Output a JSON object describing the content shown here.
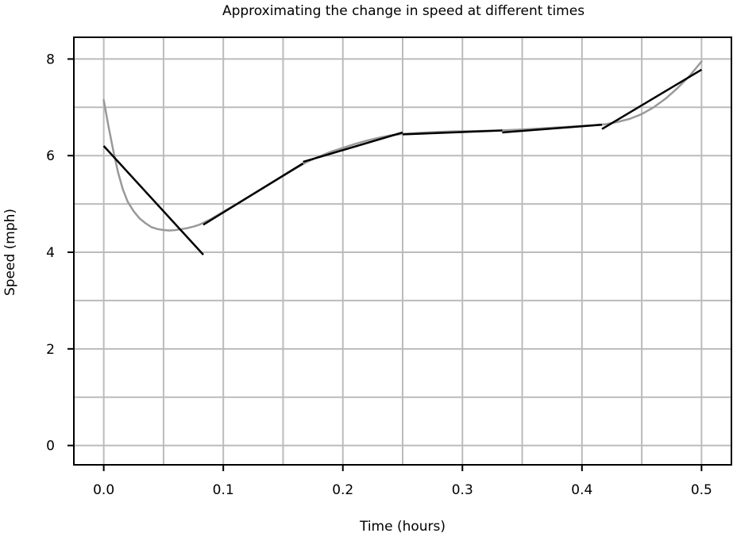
{
  "chart_data": {
    "type": "line",
    "title": "Approximating the change in speed at different times",
    "xlabel": "Time (hours)",
    "ylabel": "Speed (mph)",
    "xlim": [
      -0.025,
      0.525
    ],
    "ylim": [
      -0.4,
      8.45
    ],
    "x_ticks": [
      0.0,
      0.1,
      0.2,
      0.3,
      0.4,
      0.5
    ],
    "x_tick_labels": [
      "0.0",
      "0.1",
      "0.2",
      "0.3",
      "0.4",
      "0.5"
    ],
    "y_ticks": [
      0,
      2,
      4,
      6,
      8
    ],
    "y_tick_labels": [
      "0",
      "2",
      "4",
      "6",
      "8"
    ],
    "x_gridlines": [
      0.0,
      0.05,
      0.1,
      0.15,
      0.2,
      0.25,
      0.3,
      0.35,
      0.4,
      0.45,
      0.5
    ],
    "y_gridlines": [
      0,
      1,
      2,
      3,
      4,
      5,
      6,
      7,
      8
    ],
    "grid": true,
    "legend": "none",
    "colors": {
      "curve": "#999999",
      "secant": "#000000",
      "grid": "#bbbbbb",
      "frame": "#000000"
    },
    "series": [
      {
        "kind": "curve",
        "x": [
          0.0,
          0.004,
          0.008,
          0.012,
          0.016,
          0.02,
          0.025,
          0.03,
          0.035,
          0.04,
          0.045,
          0.05,
          0.055,
          0.06,
          0.065,
          0.07,
          0.075,
          0.08,
          0.09,
          0.1,
          0.11,
          0.12,
          0.13,
          0.14,
          0.15,
          0.16,
          0.17,
          0.18,
          0.19,
          0.2,
          0.21,
          0.22,
          0.23,
          0.24,
          0.25,
          0.27,
          0.29,
          0.31,
          0.33,
          0.35,
          0.37,
          0.39,
          0.41,
          0.42,
          0.43,
          0.44,
          0.45,
          0.46,
          0.47,
          0.48,
          0.49,
          0.5
        ],
        "y": [
          7.15,
          6.6,
          6.1,
          5.65,
          5.3,
          5.05,
          4.85,
          4.7,
          4.6,
          4.52,
          4.48,
          4.46,
          4.45,
          4.46,
          4.48,
          4.5,
          4.53,
          4.57,
          4.69,
          4.84,
          4.98,
          5.13,
          5.28,
          5.43,
          5.58,
          5.73,
          5.87,
          5.98,
          6.08,
          6.16,
          6.24,
          6.31,
          6.37,
          6.42,
          6.45,
          6.48,
          6.5,
          6.51,
          6.52,
          6.54,
          6.57,
          6.6,
          6.63,
          6.65,
          6.7,
          6.76,
          6.86,
          7.0,
          7.18,
          7.4,
          7.65,
          7.95
        ]
      },
      {
        "kind": "secant",
        "x": [
          0.0,
          0.0833
        ],
        "y": [
          6.2,
          3.95
        ]
      },
      {
        "kind": "secant",
        "x": [
          0.0833,
          0.1667
        ],
        "y": [
          4.57,
          5.84
        ]
      },
      {
        "kind": "secant",
        "x": [
          0.1667,
          0.25
        ],
        "y": [
          5.87,
          6.48
        ]
      },
      {
        "kind": "secant",
        "x": [
          0.25,
          0.3333
        ],
        "y": [
          6.44,
          6.52
        ]
      },
      {
        "kind": "secant",
        "x": [
          0.3333,
          0.4167
        ],
        "y": [
          6.48,
          6.64
        ]
      },
      {
        "kind": "secant",
        "x": [
          0.4167,
          0.5
        ],
        "y": [
          6.55,
          7.78
        ]
      }
    ]
  }
}
